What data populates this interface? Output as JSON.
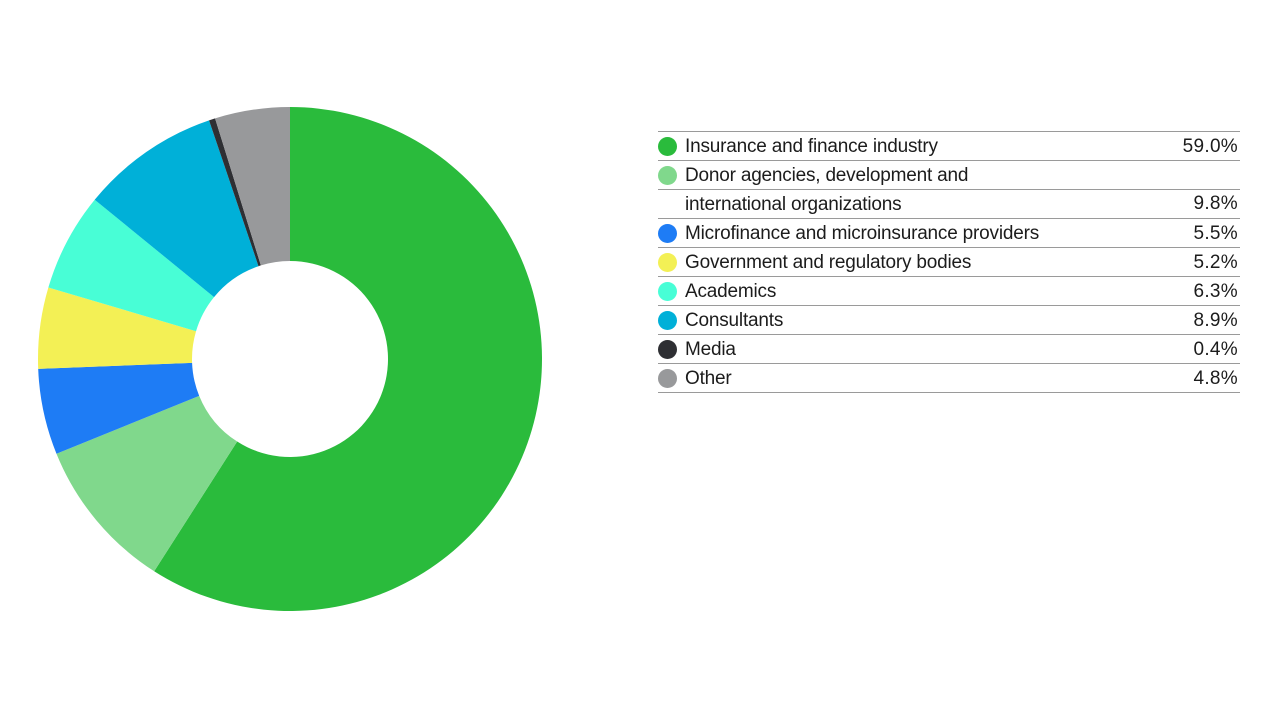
{
  "chart_data": {
    "type": "pie",
    "subtype": "donut",
    "title": "",
    "start_angle": "12 o'clock, clockwise",
    "categories": [
      "Insurance and finance industry",
      "Donor agencies, development and international organizations",
      "Microfinance and microinsurance providers",
      "Government and regulatory bodies",
      "Academics",
      "Consultants",
      "Media",
      "Other"
    ],
    "values": [
      59.0,
      9.8,
      5.5,
      5.2,
      6.3,
      8.9,
      0.4,
      4.8
    ],
    "unit": "%",
    "colors": [
      "#2abb3c",
      "#80d88c",
      "#1e7cf5",
      "#f3f055",
      "#48fed6",
      "#00b0d8",
      "#2e2f33",
      "#98999b"
    ],
    "legend_position": "right",
    "grid": false
  },
  "legend": {
    "items": [
      {
        "key": "insurance",
        "label_lines": [
          "Insurance and finance industry"
        ],
        "value": "59.0%",
        "color": "#2abb3c"
      },
      {
        "key": "donor",
        "label_lines": [
          "Donor agencies, development and",
          "international organizations"
        ],
        "value": "9.8%",
        "color": "#80d88c"
      },
      {
        "key": "microfinance",
        "label_lines": [
          "Microfinance and microinsurance providers"
        ],
        "value": "5.5%",
        "color": "#1e7cf5"
      },
      {
        "key": "government",
        "label_lines": [
          "Government and regulatory bodies"
        ],
        "value": "5.2%",
        "color": "#f3f055"
      },
      {
        "key": "academics",
        "label_lines": [
          "Academics"
        ],
        "value": "6.3%",
        "color": "#48fed6"
      },
      {
        "key": "consultants",
        "label_lines": [
          "Consultants"
        ],
        "value": "8.9%",
        "color": "#00b0d8"
      },
      {
        "key": "media",
        "label_lines": [
          "Media"
        ],
        "value": "0.4%",
        "color": "#2e2f33"
      },
      {
        "key": "other",
        "label_lines": [
          "Other"
        ],
        "value": "4.8%",
        "color": "#98999b"
      }
    ]
  }
}
